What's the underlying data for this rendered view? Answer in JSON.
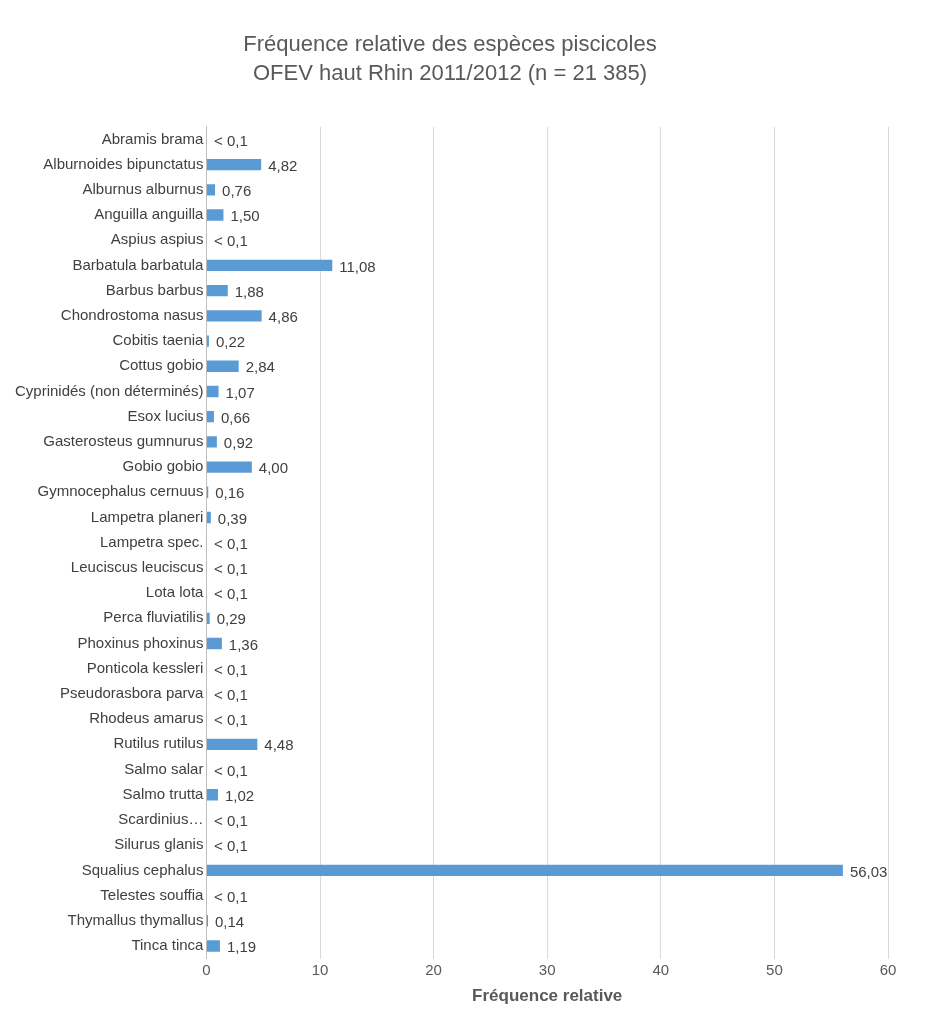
{
  "chart_data": {
    "type": "bar",
    "orientation": "horizontal",
    "title": "Fréquence relative des espèces piscicoles",
    "subtitle": "OFEV haut Rhin 2011/2012 (n = 21 385)",
    "xlabel": "Fréquence relative",
    "categories": [
      "Abramis brama",
      "Alburnoides bipunctatus",
      "Alburnus alburnus",
      "Anguilla anguilla",
      "Aspius aspius",
      "Barbatula barbatula",
      "Barbus barbus",
      "Chondrostoma nasus",
      "Cobitis taenia",
      "Cottus gobio",
      "Cyprinidés (non déterminés)",
      "Esox lucius",
      "Gasterosteus gumnurus",
      "Gobio gobio",
      "Gymnocephalus cernuus",
      "Lampetra planeri",
      "Lampetra spec.",
      "Leuciscus leuciscus",
      "Lota lota",
      "Perca fluviatilis",
      "Phoxinus phoxinus",
      "Ponticola kessleri",
      "Pseudorasbora parva",
      "Rhodeus amarus",
      "Rutilus rutilus",
      "Salmo salar",
      "Salmo trutta",
      "Scardinius…",
      "Silurus glanis",
      "Squalius cephalus",
      "Telestes souffia",
      "Thymallus thymallus",
      "Tinca tinca"
    ],
    "values": [
      0.05,
      4.82,
      0.76,
      1.5,
      0.05,
      11.08,
      1.88,
      4.86,
      0.22,
      2.84,
      1.07,
      0.66,
      0.92,
      4.0,
      0.16,
      0.39,
      0.05,
      0.05,
      0.05,
      0.29,
      1.36,
      0.05,
      0.05,
      0.05,
      4.48,
      0.05,
      1.02,
      0.05,
      0.05,
      56.03,
      0.05,
      0.14,
      1.19
    ],
    "value_labels": [
      "< 0,1",
      "4,82",
      "0,76",
      "1,50",
      "< 0,1",
      "11,08",
      "1,88",
      "4,86",
      "0,22",
      "2,84",
      "1,07",
      "0,66",
      "0,92",
      "4,00",
      "0,16",
      "0,39",
      "< 0,1",
      "< 0,1",
      "< 0,1",
      "0,29",
      "1,36",
      "< 0,1",
      "< 0,1",
      "< 0,1",
      "4,48",
      "< 0,1",
      "1,02",
      "< 0,1",
      "< 0,1",
      "56,03",
      "< 0,1",
      "0,14",
      "1,19"
    ],
    "color": "#5b9bd5",
    "xlim": [
      0,
      60
    ],
    "xticks": [
      0,
      10,
      20,
      30,
      40,
      50,
      60
    ],
    "grid": "x",
    "legend": false
  }
}
